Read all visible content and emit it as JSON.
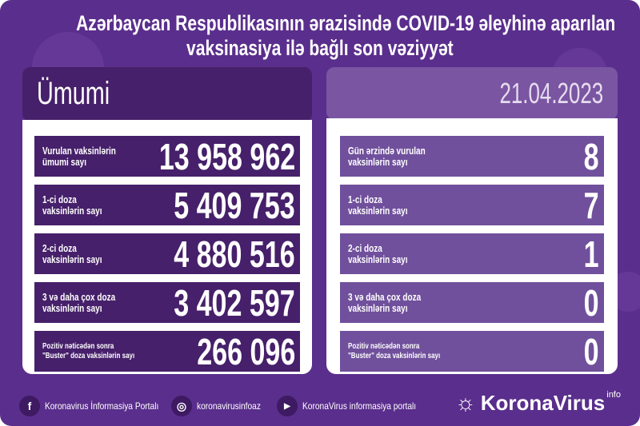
{
  "title": {
    "line1": "Azərbaycan Respublikasının ərazisində COVID-19 əleyhinə aparılan",
    "line2": "vaksinasiya ilə bağlı son vəziyyət"
  },
  "left": {
    "header": "Ümumi",
    "rows": [
      {
        "label1": "Vurulan vaksinlərin",
        "label2": "ümumi sayı",
        "value": "13 958 962"
      },
      {
        "label1": "1-ci doza",
        "label2": "vaksinlərin sayı",
        "value": "5 409 753"
      },
      {
        "label1": "2-ci doza",
        "label2": "vaksinlərin sayı",
        "value": "4 880 516"
      },
      {
        "label1": "3 və daha çox doza",
        "label2": "vaksinlərin sayı",
        "value": "3 402 597"
      },
      {
        "label1": "Pozitiv nəticədən sonra",
        "label2": "\"Buster\" doza vaksinlərin sayı",
        "value": "266 096"
      }
    ]
  },
  "right": {
    "header": "21.04.2023",
    "rows": [
      {
        "label1": "Gün ərzində vurulan",
        "label2": "vaksinlərin sayı",
        "value": "8"
      },
      {
        "label1": "1-ci doza",
        "label2": "vaksinlərin sayı",
        "value": "7"
      },
      {
        "label1": "2-ci doza",
        "label2": "vaksinlərin sayı",
        "value": "1"
      },
      {
        "label1": "3 və daha çox doza",
        "label2": "vaksinlərin sayı",
        "value": "0"
      },
      {
        "label1": "Pozitiv nəticədən sonra",
        "label2": "\"Buster\" doza vaksinlərin sayı",
        "value": "0"
      }
    ]
  },
  "footer": {
    "facebook": "Koronavirus İnformasiya Portalı",
    "instagram": "koronavirusinfoaz",
    "youtube": "KoronaVirus informasiya portalı",
    "logo": "KoronaVirus",
    "logo_sup": "info"
  },
  "colors": {
    "background": "#5a2e8c",
    "left_panel": "#46206a",
    "right_panel": "#70509c"
  }
}
